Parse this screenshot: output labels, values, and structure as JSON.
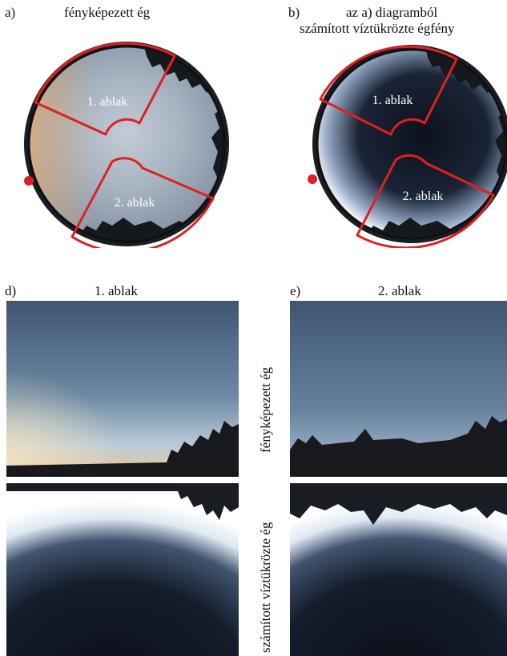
{
  "panel_a": {
    "letter": "a)",
    "title": "fényképezett ég",
    "window1": "1. ablak",
    "window2": "2. ablak"
  },
  "panel_b": {
    "letter": "b)",
    "title_line1": "az a) diagramból",
    "title_line2": "számított víztükrözte égfény",
    "window1": "1. ablak",
    "window2": "2. ablak"
  },
  "panel_d": {
    "letter": "d)",
    "title": "1. ablak"
  },
  "panel_e": {
    "letter": "e)",
    "title": "2. ablak"
  },
  "row_labels": {
    "top": "fényképezett ég",
    "bottom": "számított víztükrözte ég"
  },
  "colors": {
    "outline_red": "#e02020",
    "marker_red": "#e02020",
    "sky_blue_top": "#3f5572",
    "dark_core": "#0c111c"
  }
}
